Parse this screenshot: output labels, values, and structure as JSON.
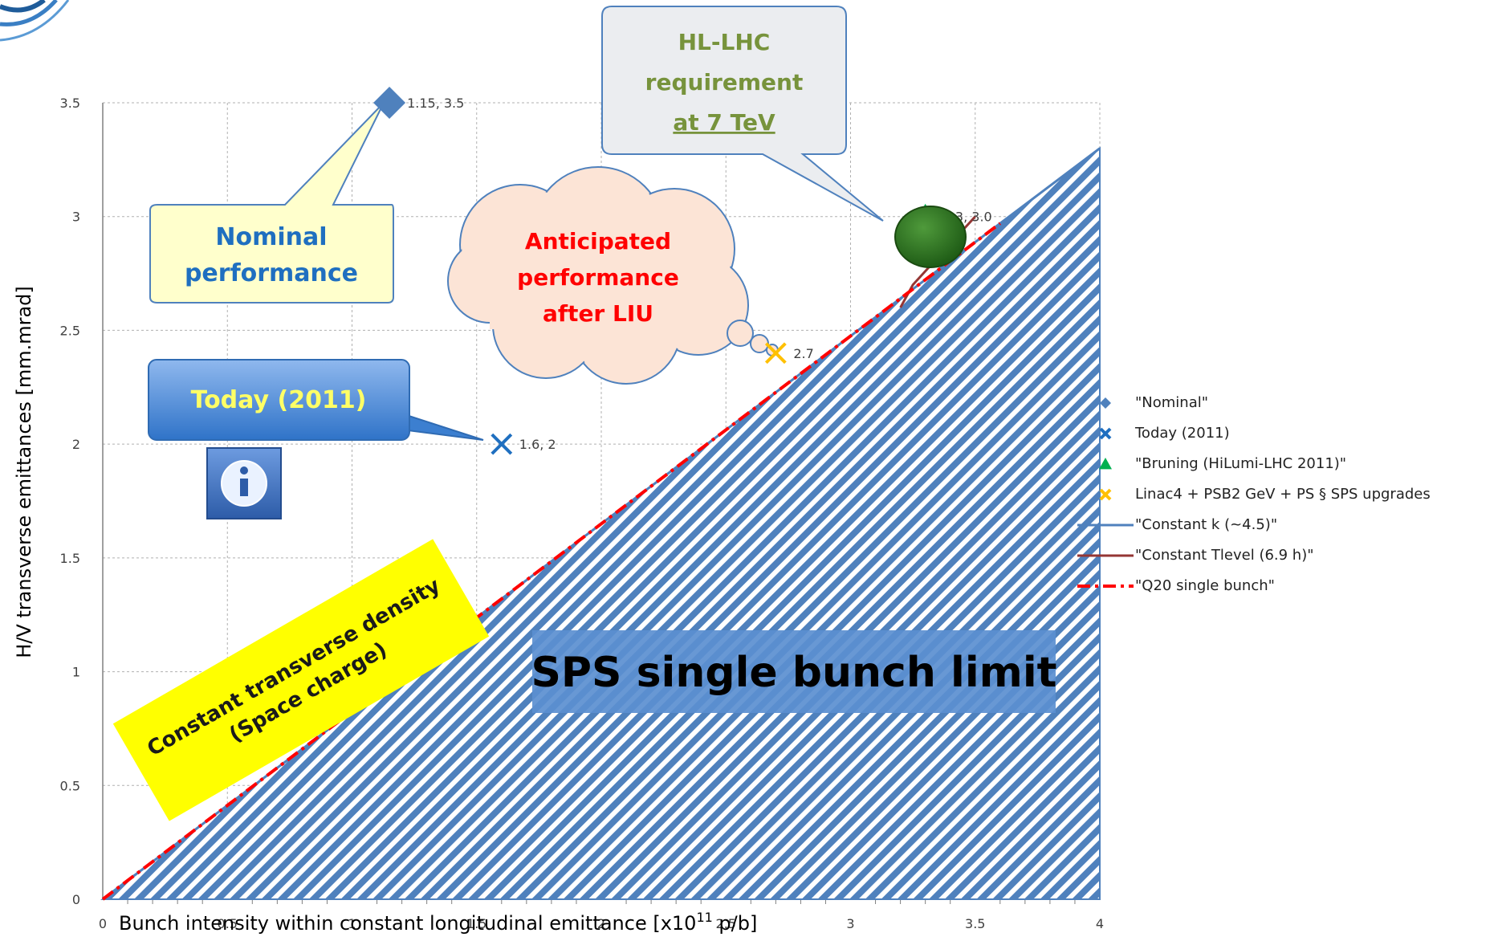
{
  "chart_data": {
    "type": "scatter",
    "xlabel_main": "Bunch intensity within constant longitudinal emittance [x10",
    "xlabel_sup": "11",
    "xlabel_end": " p/b]",
    "ylabel": "H/V transverse emittances [mm.mrad]",
    "xlim": [
      0,
      4
    ],
    "ylim": [
      0,
      3.5
    ],
    "x_ticks": [
      "0",
      "0.5",
      "1",
      "1.5",
      "2",
      "2.5",
      "3",
      "3.5",
      "4"
    ],
    "y_ticks": [
      "0",
      "0.5",
      "1",
      "1.5",
      "2",
      "2.5",
      "3",
      "3.5"
    ],
    "grid": true,
    "legend_position": "right",
    "points": [
      {
        "legend": "\"Nominal\"",
        "marker": "diamond",
        "color": "#4F81BD",
        "x": 1.15,
        "y": 3.5,
        "label": "1.15, 3.5"
      },
      {
        "legend": "Today (2011)",
        "marker": "x",
        "color": "#1F6FC0",
        "x": 1.6,
        "y": 2.0,
        "label": "1.6, 2"
      },
      {
        "legend": "\"Bruning (HiLumi-LHC 2011)\"",
        "marker": "triangle",
        "color": "#00B050",
        "x": 3.3,
        "y": 3.0,
        "label": "3.3, 3.0"
      },
      {
        "legend": "Linac4 + PSB2 GeV + PS § SPS upgrades",
        "marker": "x",
        "color": "#FFC000",
        "x": 2.7,
        "y": 2.4,
        "label": "2.7"
      }
    ],
    "lines": [
      {
        "legend": "\"Constant k (~4.5)\"",
        "style": "solid",
        "color": "#4F81BD",
        "x": [
          0,
          4
        ],
        "y": [
          0,
          3.3
        ]
      },
      {
        "legend": "\"Constant Tlevel (6.9 h)\"",
        "style": "solid",
        "color": "#943634",
        "x": [
          3.2,
          3.25,
          3.5
        ],
        "y": [
          2.6,
          2.7,
          3.0
        ]
      },
      {
        "legend": "\"Q20 single bunch\"",
        "style": "dashdot",
        "color": "#FF0000",
        "x": [
          0,
          3.6
        ],
        "y": [
          0,
          2.97
        ]
      }
    ],
    "annotations": {
      "nominal_callout": "Nominal performance",
      "nominal_line1": "Nominal",
      "nominal_line2": "performance",
      "today_callout": "Today (2011)",
      "hl_line1": "HL-LHC",
      "hl_line2": "requirement",
      "hl_line3": "at 7 TeV",
      "cloud_line1": "Anticipated",
      "cloud_line2": "performance",
      "cloud_line3": "after LIU",
      "density_line1": "Constant transverse density",
      "density_line2": "(Space charge)",
      "sps_limit": "SPS single bunch limit"
    }
  }
}
